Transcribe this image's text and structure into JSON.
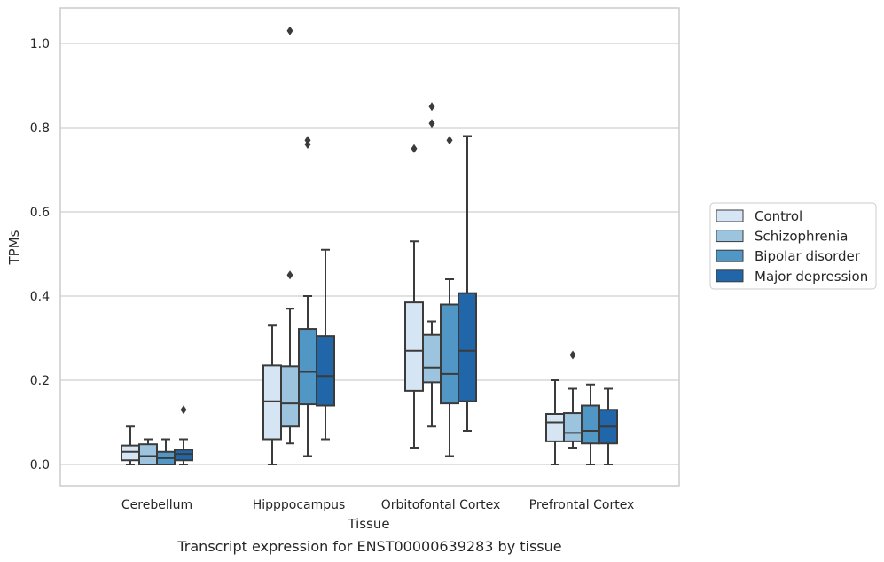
{
  "chart_data": {
    "type": "box",
    "xlabel": "Tissue",
    "ylabel": "TPMs",
    "caption": "Transcript expression for ENST00000639283 by tissue",
    "ylim": [
      -0.05,
      1.08
    ],
    "yticks": [
      0.0,
      0.2,
      0.4,
      0.6,
      0.8,
      1.0
    ],
    "ytick_labels": [
      "0.0",
      "0.2",
      "0.4",
      "0.6",
      "0.8",
      "1.0"
    ],
    "grid": "horizontal",
    "legend_position": "right",
    "categories": [
      "Cerebellum",
      "Hipppocampus",
      "Orbitofontal Cortex",
      "Prefrontal Cortex"
    ],
    "series": [
      {
        "name": "Control",
        "color": "#d6e5f4",
        "boxes": [
          {
            "whislo": 0.0,
            "q1": 0.01,
            "med": 0.03,
            "q3": 0.045,
            "whishi": 0.09,
            "fliers": []
          },
          {
            "whislo": 0.0,
            "q1": 0.06,
            "med": 0.15,
            "q3": 0.235,
            "whishi": 0.33,
            "fliers": []
          },
          {
            "whislo": 0.04,
            "q1": 0.175,
            "med": 0.27,
            "q3": 0.385,
            "whishi": 0.53,
            "fliers": [
              0.75
            ]
          },
          {
            "whislo": 0.0,
            "q1": 0.055,
            "med": 0.1,
            "q3": 0.12,
            "whishi": 0.2,
            "fliers": []
          }
        ]
      },
      {
        "name": "Schizophrenia",
        "color": "#9cc4de",
        "boxes": [
          {
            "whislo": 0.0,
            "q1": 0.0,
            "med": 0.02,
            "q3": 0.048,
            "whishi": 0.06,
            "fliers": []
          },
          {
            "whislo": 0.05,
            "q1": 0.09,
            "med": 0.145,
            "q3": 0.233,
            "whishi": 0.37,
            "fliers": [
              0.45,
              1.03
            ]
          },
          {
            "whislo": 0.09,
            "q1": 0.195,
            "med": 0.23,
            "q3": 0.308,
            "whishi": 0.34,
            "fliers": [
              0.81,
              0.85
            ]
          },
          {
            "whislo": 0.04,
            "q1": 0.055,
            "med": 0.075,
            "q3": 0.122,
            "whishi": 0.18,
            "fliers": [
              0.26
            ]
          }
        ]
      },
      {
        "name": "Bipolar disorder",
        "color": "#5197c5",
        "boxes": [
          {
            "whislo": 0.0,
            "q1": 0.0,
            "med": 0.015,
            "q3": 0.03,
            "whishi": 0.06,
            "fliers": []
          },
          {
            "whislo": 0.02,
            "q1": 0.143,
            "med": 0.22,
            "q3": 0.322,
            "whishi": 0.4,
            "fliers": [
              0.76,
              0.77
            ]
          },
          {
            "whislo": 0.02,
            "q1": 0.145,
            "med": 0.215,
            "q3": 0.38,
            "whishi": 0.44,
            "fliers": [
              0.77
            ]
          },
          {
            "whislo": 0.0,
            "q1": 0.05,
            "med": 0.08,
            "q3": 0.14,
            "whishi": 0.19,
            "fliers": []
          }
        ]
      },
      {
        "name": "Major depression",
        "color": "#2166a9",
        "boxes": [
          {
            "whislo": 0.0,
            "q1": 0.01,
            "med": 0.025,
            "q3": 0.035,
            "whishi": 0.06,
            "fliers": [
              0.13
            ]
          },
          {
            "whislo": 0.06,
            "q1": 0.14,
            "med": 0.21,
            "q3": 0.305,
            "whishi": 0.51,
            "fliers": []
          },
          {
            "whislo": 0.08,
            "q1": 0.15,
            "med": 0.27,
            "q3": 0.407,
            "whishi": 0.78,
            "fliers": []
          },
          {
            "whislo": 0.0,
            "q1": 0.05,
            "med": 0.09,
            "q3": 0.13,
            "whishi": 0.18,
            "fliers": []
          }
        ]
      }
    ]
  }
}
